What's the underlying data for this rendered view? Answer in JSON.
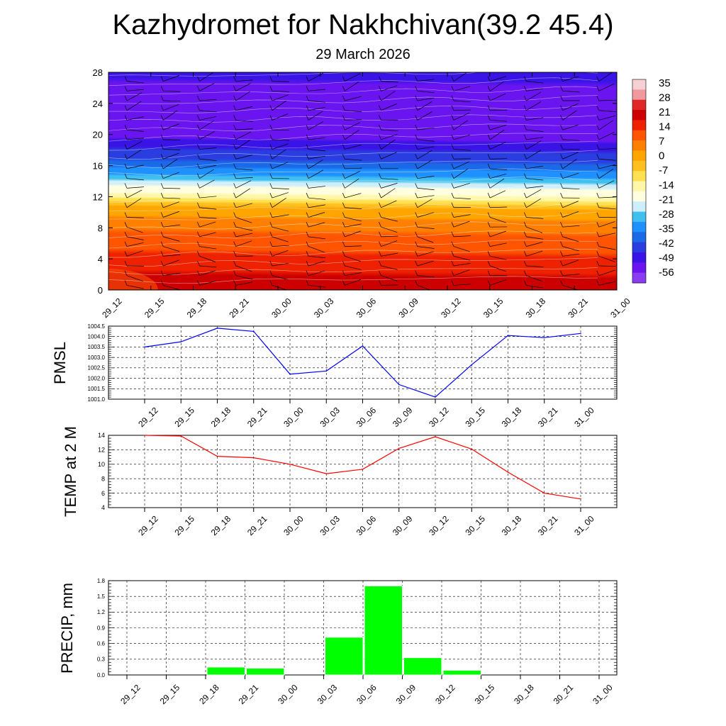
{
  "title": "Kazhydromet for Nakhchivan(39.2 45.4)",
  "subtitle": "29 March 2026",
  "time_labels": [
    "29_12",
    "29_15",
    "29_18",
    "29_21",
    "30_00",
    "30_03",
    "30_06",
    "30_09",
    "30_12",
    "30_15",
    "30_18",
    "30_21",
    "31_00"
  ],
  "colors": {
    "pmsl_line": "#0000ff",
    "temp_line": "#ff0000",
    "precip_bar": "#00ff00",
    "precip_bar_edge": "#ffffff",
    "grid": "#000000"
  },
  "chart_data": [
    {
      "id": "vertical_cross_section",
      "type": "heatmap",
      "description_of_fill": "temperature",
      "x_categories": [
        "29_12",
        "29_15",
        "29_18",
        "29_21",
        "30_00",
        "30_03",
        "30_06",
        "30_09",
        "30_12",
        "30_15",
        "30_18",
        "30_21",
        "31_00"
      ],
      "ylim": [
        0,
        28
      ],
      "y_ticks": [
        0,
        4,
        8,
        12,
        16,
        20,
        24,
        28
      ],
      "colorbar": {
        "labels": [
          "35",
          "28",
          "21",
          "14",
          "7",
          "0",
          "-7",
          "-14",
          "-21",
          "-28",
          "-35",
          "-42",
          "-49",
          "-56"
        ],
        "colors": [
          "#f7d0d3",
          "#f09aa0",
          "#e02828",
          "#cc0000",
          "#ee2200",
          "#ff5500",
          "#ff8000",
          "#ffa500",
          "#ffc020",
          "#ffe050",
          "#fff7a8",
          "#ffffe0",
          "#cdeefa",
          "#40c0f0",
          "#1e90ff",
          "#1a6ae8",
          "#2a3de0",
          "#3a14e6",
          "#6a14f0",
          "#8a3cf0"
        ]
      },
      "temperature_profile": [
        {
          "z": 0,
          "t": 20
        },
        {
          "z": 4,
          "t": 12
        },
        {
          "z": 8,
          "t": 5
        },
        {
          "z": 10.5,
          "t": -2
        },
        {
          "z": 12,
          "t": -15
        },
        {
          "z": 14,
          "t": -28
        },
        {
          "z": 16,
          "t": -40
        },
        {
          "z": 19,
          "t": -52
        },
        {
          "z": 21,
          "t": -57
        },
        {
          "z": 24,
          "t": -57
        },
        {
          "z": 28,
          "t": -52
        }
      ]
    },
    {
      "id": "pmsl",
      "type": "line",
      "ylabel": "PMSL",
      "categories": [
        "29_12",
        "29_15",
        "29_18",
        "29_21",
        "30_00",
        "30_03",
        "30_06",
        "30_09",
        "30_12",
        "30_15",
        "30_18",
        "30_21",
        "31_00"
      ],
      "values": [
        1003.5,
        1003.75,
        1004.4,
        1004.25,
        1002.2,
        1002.35,
        1003.55,
        1001.7,
        1001.1,
        1002.65,
        1004.05,
        1003.95,
        1004.15
      ],
      "ylim": [
        1001.0,
        1004.5
      ],
      "y_ticks": [
        "1001.0",
        "1001.5",
        "1002.0",
        "1002.5",
        "1003.0",
        "1003.5",
        "1004.0",
        "1004.5"
      ]
    },
    {
      "id": "temp2m",
      "type": "line",
      "ylabel": "TEMP at 2 M",
      "categories": [
        "29_12",
        "29_15",
        "29_18",
        "29_21",
        "30_00",
        "30_03",
        "30_06",
        "30_09",
        "30_12",
        "30_15",
        "30_18",
        "30_21",
        "31_00"
      ],
      "values": [
        14.0,
        13.9,
        11.1,
        10.9,
        10.0,
        8.7,
        9.3,
        12.2,
        13.8,
        12.1,
        8.9,
        6.0,
        5.2
      ],
      "ylim": [
        4,
        14
      ],
      "y_ticks": [
        "4",
        "6",
        "8",
        "10",
        "12",
        "14"
      ]
    },
    {
      "id": "precip",
      "type": "bar",
      "ylabel": "PRECIP, mm",
      "categories": [
        "29_12",
        "29_15",
        "29_18",
        "29_21",
        "30_00",
        "30_03",
        "30_06",
        "30_09",
        "30_12",
        "30_15",
        "30_18",
        "30_21",
        "31_00"
      ],
      "values": [
        0,
        0,
        0.15,
        0.13,
        0,
        0.72,
        1.7,
        0.33,
        0.09,
        0,
        0,
        0,
        0
      ],
      "ylim": [
        0,
        1.8
      ],
      "y_ticks": [
        "0.0",
        "0.3",
        "0.6",
        "0.9",
        "1.2",
        "1.5",
        "1.8"
      ]
    }
  ]
}
